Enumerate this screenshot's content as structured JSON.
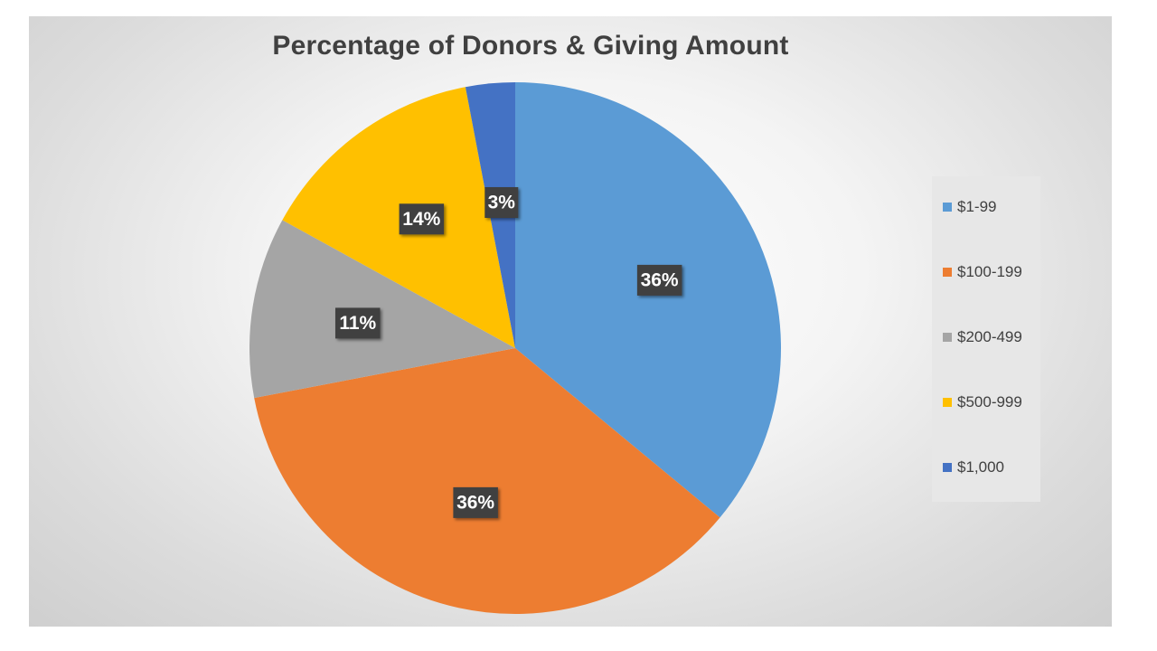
{
  "chart_data": {
    "type": "pie",
    "title": "Percentage of Donors & Giving Amount",
    "categories": [
      "$1-99",
      "$100-199",
      "$200-499",
      "$500-999",
      "$1,000"
    ],
    "values": [
      36,
      36,
      11,
      14,
      3
    ],
    "data_labels": [
      "36%",
      "36%",
      "11%",
      "14%",
      "3%"
    ],
    "colors": [
      "#5b9bd5",
      "#ed7d31",
      "#a5a5a5",
      "#ffc000",
      "#4472c4"
    ],
    "start_angle_deg": 0,
    "direction": "clockwise",
    "legend_position": "right"
  }
}
